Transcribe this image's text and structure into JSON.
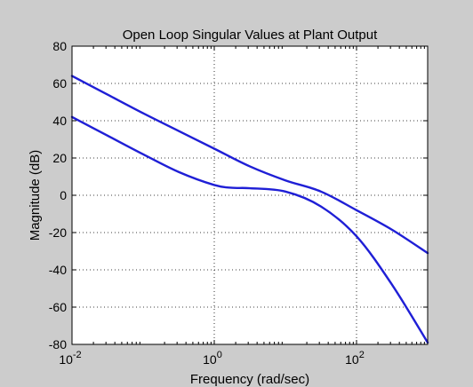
{
  "chart_data": {
    "type": "line",
    "title": "Open Loop Singular Values at Plant Output",
    "xlabel": "Frequency (rad/sec)",
    "ylabel": "Magnitude (dB)",
    "xscale": "log",
    "xlim": [
      0.01,
      1000
    ],
    "ylim": [
      -80,
      80
    ],
    "grid": true,
    "legend": "none",
    "line_color": "#1f1fd6",
    "plot_background": "#ffffff",
    "figure_background": "#cccccc",
    "x_ticks": [
      {
        "value": 0.01,
        "base": "10",
        "exp": "-2"
      },
      {
        "value": 1,
        "base": "10",
        "exp": "0"
      },
      {
        "value": 100,
        "base": "10",
        "exp": "2"
      }
    ],
    "y_ticks": [
      80,
      60,
      40,
      20,
      0,
      -20,
      -40,
      -60,
      -80
    ],
    "series": [
      {
        "x": [
          0.01,
          0.0316,
          0.1,
          0.316,
          1,
          3.16,
          10,
          31.6,
          100,
          316,
          1000
        ],
        "y": [
          64,
          54,
          44,
          34.5,
          25,
          15.5,
          8,
          2,
          -8,
          -18.5,
          -31
        ]
      },
      {
        "x": [
          0.01,
          0.0316,
          0.1,
          0.316,
          1,
          1.78,
          3.16,
          10,
          31.6,
          100,
          316,
          1000
        ],
        "y": [
          42,
          32,
          22,
          12.5,
          5.5,
          4,
          3.8,
          2,
          -6,
          -22,
          -48,
          -79
        ]
      }
    ]
  }
}
